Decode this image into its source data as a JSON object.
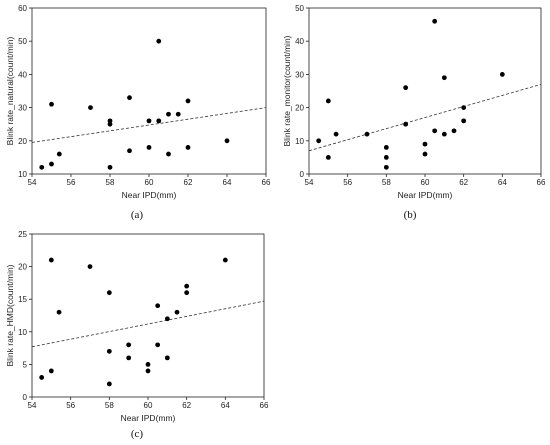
{
  "chart_data": [
    {
      "type": "scatter",
      "panel_label": "(a)",
      "xlabel": "Near IPD(mm)",
      "ylabel": "Blink rate_natural(count/min)",
      "xlim": [
        54,
        66
      ],
      "ylim": [
        10,
        60
      ],
      "xticks": [
        "54",
        "56",
        "58",
        "60",
        "62",
        "64",
        "66"
      ],
      "yticks": [
        "10",
        "20",
        "30",
        "40",
        "50",
        "60"
      ],
      "x": [
        54.5,
        55.0,
        55.0,
        55.4,
        57.0,
        58.0,
        58.0,
        58.0,
        59.0,
        59.0,
        60.0,
        60.0,
        60.5,
        60.5,
        61.0,
        61.0,
        61.5,
        62.0,
        62.0,
        64.0
      ],
      "y": [
        12,
        13,
        31,
        16,
        30,
        26,
        25,
        12,
        33,
        17,
        26,
        18,
        50,
        26,
        28,
        16,
        28,
        32,
        18,
        20
      ],
      "trendline": {
        "x": [
          54,
          66
        ],
        "y": [
          19.5,
          30
        ]
      }
    },
    {
      "type": "scatter",
      "panel_label": "(b)",
      "xlabel": "Near IPD(mm)",
      "ylabel": "Blink rate_monitor(count/min)",
      "xlim": [
        54,
        66
      ],
      "ylim": [
        0,
        50
      ],
      "xticks": [
        "54",
        "56",
        "58",
        "60",
        "62",
        "64",
        "66"
      ],
      "yticks": [
        "0",
        "10",
        "20",
        "30",
        "40",
        "50"
      ],
      "x": [
        54.5,
        55.0,
        55.0,
        55.4,
        57.0,
        58.0,
        58.0,
        58.0,
        59.0,
        59.0,
        60.0,
        60.0,
        60.5,
        60.5,
        61.0,
        61.0,
        61.5,
        62.0,
        62.0,
        64.0
      ],
      "y": [
        10,
        5,
        22,
        12,
        12,
        8,
        5,
        2,
        26,
        15,
        9,
        6,
        46,
        13,
        29,
        12,
        13,
        20,
        16,
        30
      ],
      "trendline": {
        "x": [
          54,
          66
        ],
        "y": [
          7,
          27
        ]
      }
    },
    {
      "type": "scatter",
      "panel_label": "(c)",
      "xlabel": "Near IPD(mm)",
      "ylabel": "Blink rate_HMD(count/min)",
      "xlim": [
        54,
        66
      ],
      "ylim": [
        0,
        25
      ],
      "xticks": [
        "54",
        "56",
        "58",
        "60",
        "62",
        "64",
        "66"
      ],
      "yticks": [
        "0",
        "5",
        "10",
        "15",
        "20",
        "25"
      ],
      "x": [
        54.5,
        55.0,
        55.0,
        55.4,
        57.0,
        58.0,
        58.0,
        58.0,
        59.0,
        59.0,
        60.0,
        60.0,
        60.5,
        60.5,
        61.0,
        61.0,
        61.5,
        62.0,
        62.0,
        64.0
      ],
      "y": [
        3,
        4,
        21,
        13,
        20,
        16,
        7,
        2,
        8,
        6,
        5,
        4,
        14,
        8,
        12,
        6,
        13,
        17,
        16,
        21
      ],
      "trendline": {
        "x": [
          54,
          66
        ],
        "y": [
          7.7,
          14.7
        ]
      }
    }
  ]
}
